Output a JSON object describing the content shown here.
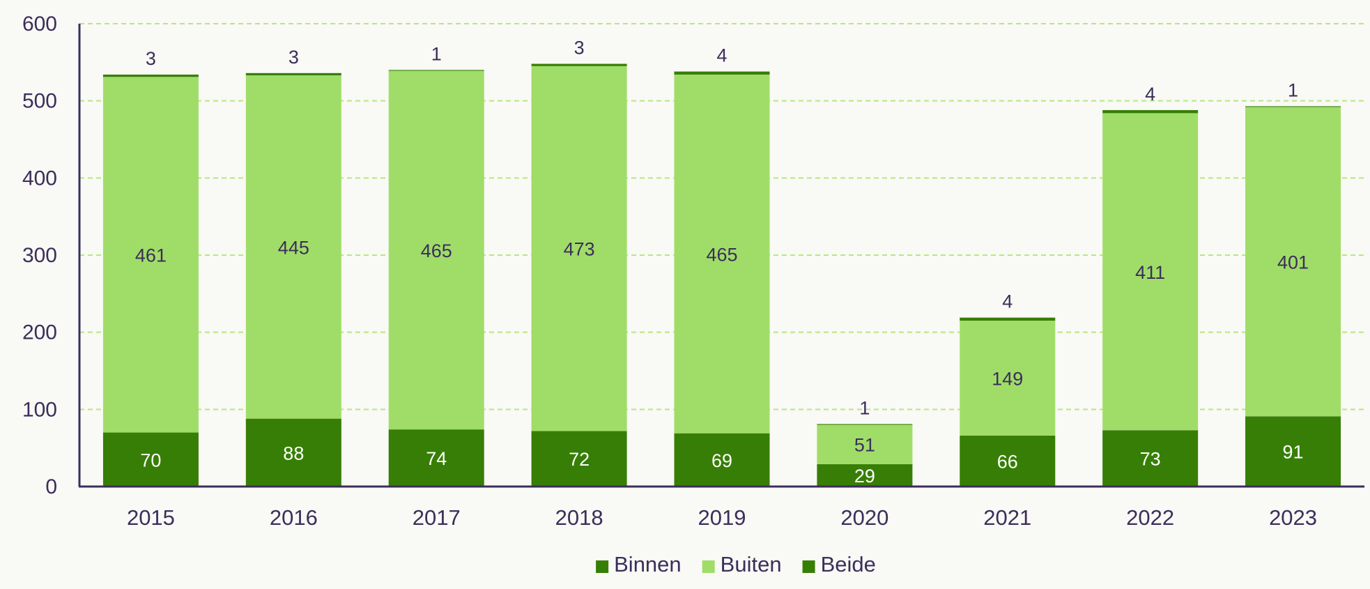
{
  "chart_data": {
    "type": "bar",
    "stacked": true,
    "categories": [
      "2015",
      "2016",
      "2017",
      "2018",
      "2019",
      "2020",
      "2021",
      "2022",
      "2023"
    ],
    "series": [
      {
        "name": "Binnen",
        "color": "#377e06",
        "values": [
          70,
          88,
          74,
          72,
          69,
          29,
          66,
          73,
          91
        ],
        "labels": [
          "70",
          "88",
          "74",
          "72",
          "69",
          "29",
          "66",
          "73",
          "91"
        ]
      },
      {
        "name": "Buiten",
        "color": "#a0dd68",
        "values": [
          461,
          445,
          465,
          473,
          465,
          51,
          149,
          411,
          401
        ],
        "labels": [
          "461",
          "445",
          "465",
          "473",
          "465",
          "51",
          "149",
          "411",
          "401"
        ]
      },
      {
        "name": "Beide",
        "color": "#377e06",
        "values": [
          3,
          3,
          1,
          3,
          4,
          1,
          4,
          4,
          1
        ],
        "labels": [
          "3",
          "3",
          "1",
          "3",
          "4",
          "1",
          "4",
          "4",
          "1"
        ]
      }
    ],
    "yticks": [
      "0",
      "100",
      "200",
      "300",
      "400",
      "500",
      "600"
    ],
    "ylim": [
      0,
      600
    ],
    "grid": true,
    "legend_position": "bottom"
  },
  "colors": {
    "axis": "#3b2e5a",
    "grid": "#b6e880",
    "label_dark": "#3b2e5a",
    "label_light": "#ffffff"
  }
}
